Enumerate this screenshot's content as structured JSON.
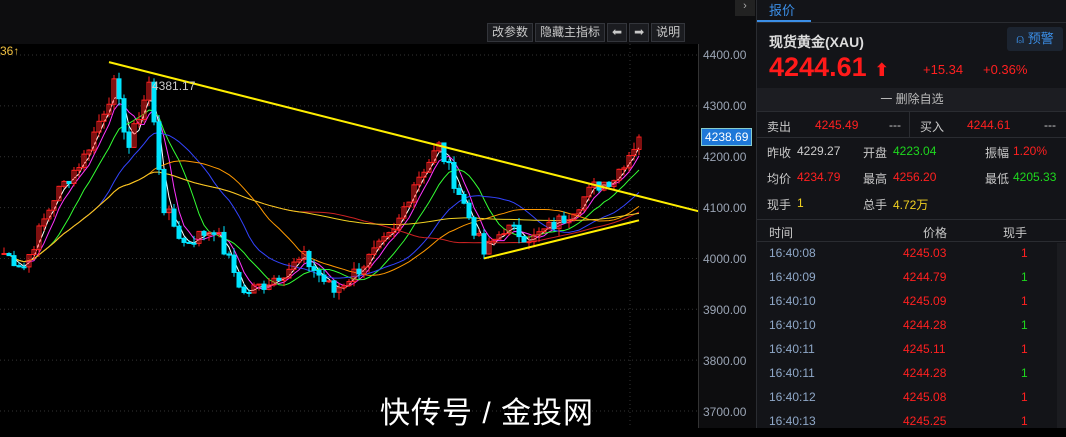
{
  "chart": {
    "legend_value": "36",
    "toolbar": [
      "改参数",
      "隐藏主指标",
      "⬅",
      "➡",
      "说明"
    ],
    "y_axis": {
      "ticks": [
        "4400.00",
        "4300.00",
        "4200.00",
        "4100.00",
        "4000.00",
        "3900.00",
        "3800.00",
        "3700.00"
      ],
      "range": [
        3680,
        4420
      ]
    },
    "current_price_tag": "4238.69",
    "high_label": "4381.17",
    "approx_close_path": [
      [
        0,
        4010
      ],
      [
        4,
        3985
      ],
      [
        10,
        4120
      ],
      [
        16,
        4200
      ],
      [
        22,
        4340
      ],
      [
        25,
        4220
      ],
      [
        29,
        4345
      ],
      [
        32,
        4100
      ],
      [
        36,
        4030
      ],
      [
        42,
        4060
      ],
      [
        48,
        3930
      ],
      [
        52,
        3950
      ],
      [
        60,
        4000
      ],
      [
        66,
        3935
      ],
      [
        72,
        3990
      ],
      [
        78,
        4050
      ],
      [
        82,
        4150
      ],
      [
        87,
        4220
      ],
      [
        91,
        4130
      ],
      [
        96,
        4010
      ],
      [
        100,
        4060
      ],
      [
        106,
        4040
      ],
      [
        112,
        4080
      ],
      [
        118,
        4140
      ],
      [
        122,
        4160
      ],
      [
        127,
        4238
      ]
    ],
    "resistance_line": [
      [
        21,
        4386
      ],
      [
        140,
        4090
      ]
    ],
    "support_line": [
      [
        96,
        4000
      ],
      [
        127,
        4075
      ]
    ],
    "colors": {
      "up": "#ff2020",
      "down": "#00e5ff",
      "trend": "#ffee00"
    }
  },
  "panel": {
    "tab": "报价",
    "name": "现货黄金(XAU)",
    "alarm": "预警",
    "price": "4244.61",
    "arrow": "⬆",
    "change": "+15.34",
    "change_pct": "+0.36%",
    "remove": "一 删除自选",
    "sell_label": "卖出",
    "sell": "4245.49",
    "sell_vol": "---",
    "buy_label": "买入",
    "buy": "4244.61",
    "buy_vol": "---",
    "stats": [
      {
        "label": "昨收",
        "value": "4229.27",
        "color": "w"
      },
      {
        "label": "开盘",
        "value": "4223.04",
        "color": "g"
      },
      {
        "label": "振幅",
        "value": "1.20%",
        "color": "r"
      },
      {
        "label": "均价",
        "value": "4234.79",
        "color": "r"
      },
      {
        "label": "最高",
        "value": "4256.20",
        "color": "r"
      },
      {
        "label": "最低",
        "value": "4205.33",
        "color": "g"
      },
      {
        "label": "现手",
        "value": "1",
        "color": "y"
      },
      {
        "label": "总手",
        "value": "4.72万",
        "color": "y"
      }
    ],
    "ticks_header": {
      "time": "时间",
      "price": "价格",
      "vol": "现手"
    },
    "ticks": [
      {
        "time": "16:40:08",
        "price": "4245.03",
        "vol": "1",
        "dir": "r"
      },
      {
        "time": "16:40:09",
        "price": "4244.79",
        "vol": "1",
        "dir": "g"
      },
      {
        "time": "16:40:10",
        "price": "4245.09",
        "vol": "1",
        "dir": "r"
      },
      {
        "time": "16:40:10",
        "price": "4244.28",
        "vol": "1",
        "dir": "g"
      },
      {
        "time": "16:40:11",
        "price": "4245.11",
        "vol": "1",
        "dir": "r"
      },
      {
        "time": "16:40:11",
        "price": "4244.28",
        "vol": "1",
        "dir": "g"
      },
      {
        "time": "16:40:12",
        "price": "4245.08",
        "vol": "1",
        "dir": "r"
      },
      {
        "time": "16:40:13",
        "price": "4245.25",
        "vol": "1",
        "dir": "r"
      }
    ]
  },
  "watermark": "快传号 / 金投网"
}
